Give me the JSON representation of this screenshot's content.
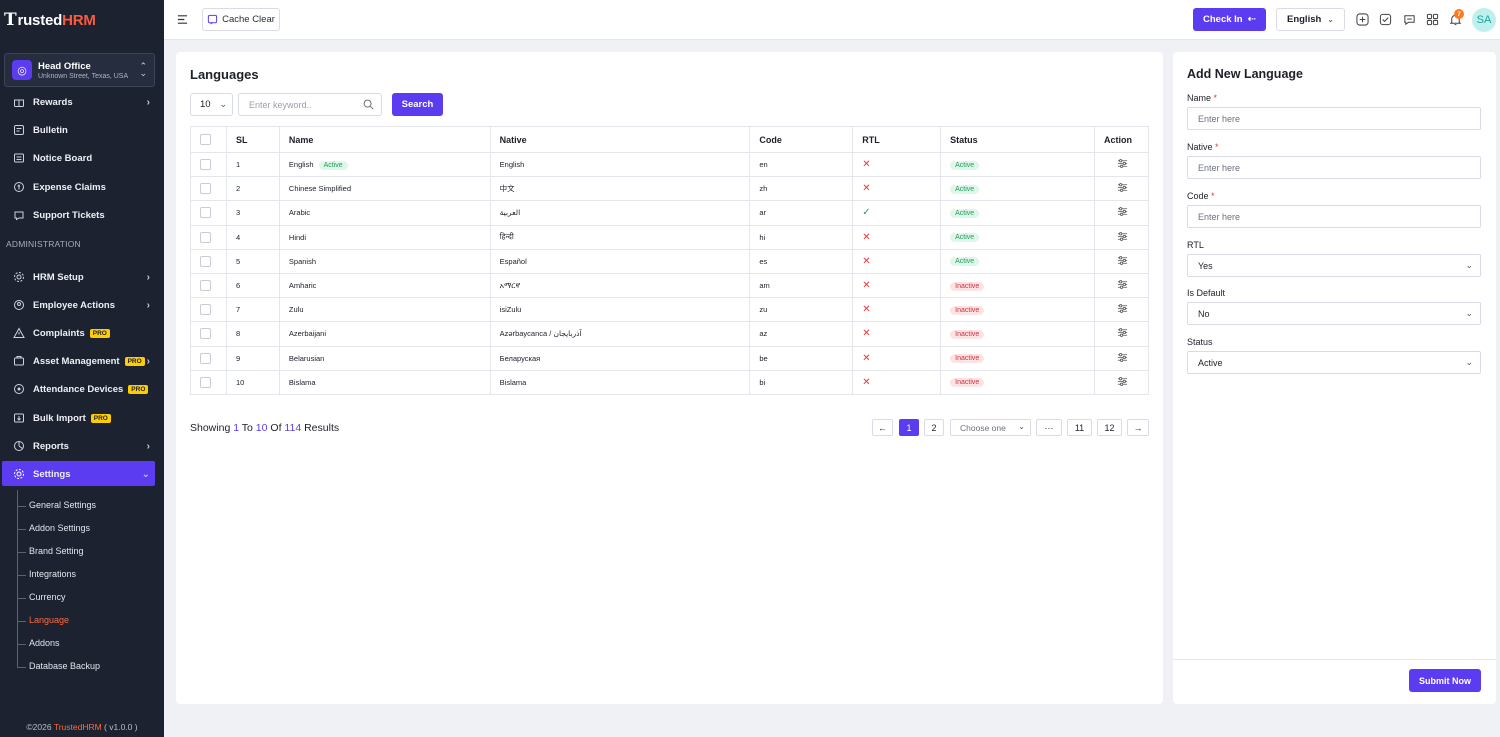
{
  "sidebar": {
    "logo_prefix": "T",
    "logo_main": "rusted",
    "logo_accent": "HRM",
    "branch": {
      "name": "Head Office",
      "address": "Unknown Street, Texas, USA"
    },
    "items_top": [
      {
        "label": "Rewards",
        "icon": "gift-icon",
        "arrow": "›"
      },
      {
        "label": "Bulletin",
        "icon": "bulletin-icon"
      },
      {
        "label": "Notice Board",
        "icon": "notice-icon"
      },
      {
        "label": "Expense Claims",
        "icon": "money-icon"
      },
      {
        "label": "Support Tickets",
        "icon": "ticket-icon"
      }
    ],
    "section": "ADMINISTRATION",
    "items_admin": [
      {
        "label": "HRM Setup",
        "icon": "gear-icon",
        "arrow": "›"
      },
      {
        "label": "Employee Actions",
        "icon": "user-icon",
        "arrow": "›"
      },
      {
        "label": "Complaints",
        "icon": "warning-icon",
        "pro": "PRO"
      },
      {
        "label": "Asset Management",
        "icon": "asset-icon",
        "pro": "PRO",
        "arrow": "›"
      },
      {
        "label": "Attendance Devices",
        "icon": "device-icon",
        "pro": "PRO"
      },
      {
        "label": "Bulk Import",
        "icon": "import-icon",
        "pro": "PRO"
      },
      {
        "label": "Reports",
        "icon": "report-icon",
        "arrow": "›"
      },
      {
        "label": "Settings",
        "icon": "settings-icon",
        "arrow": "⌄"
      }
    ],
    "settings_sub": [
      "General Settings",
      "Addon Settings",
      "Brand Setting",
      "Integrations",
      "Currency",
      "Language",
      "Addons",
      "Database Backup"
    ],
    "active_sub": "Language",
    "footer_prefix": "©2026 ",
    "footer_brand": "TrustedHRM",
    "footer_suffix": " ( v1.0.0 )"
  },
  "header": {
    "cache_label": "Cache Clear",
    "checkin_label": "Check In",
    "language": "English",
    "notification_count": "7",
    "avatar_initials": "SA"
  },
  "main": {
    "title": "Languages",
    "per_page": "10",
    "search_placeholder": "Enter keyword..",
    "search_label": "Search",
    "columns": [
      "SL",
      "Name",
      "Native",
      "Code",
      "RTL",
      "Status",
      "Action"
    ],
    "rows": [
      {
        "sl": "1",
        "name": "English",
        "default_badge": "Active",
        "native": "English",
        "code": "en",
        "rtl": false,
        "status": "Active"
      },
      {
        "sl": "2",
        "name": "Chinese Simplified",
        "native": "中文",
        "code": "zh",
        "rtl": false,
        "status": "Active"
      },
      {
        "sl": "3",
        "name": "Arabic",
        "native": "العربية",
        "code": "ar",
        "rtl": true,
        "status": "Active"
      },
      {
        "sl": "4",
        "name": "Hindi",
        "native": "हिन्दी",
        "code": "hi",
        "rtl": false,
        "status": "Active"
      },
      {
        "sl": "5",
        "name": "Spanish",
        "native": "Español",
        "code": "es",
        "rtl": false,
        "status": "Active"
      },
      {
        "sl": "6",
        "name": "Amharic",
        "native": "አማርኛ",
        "code": "am",
        "rtl": false,
        "status": "Inactive"
      },
      {
        "sl": "7",
        "name": "Zulu",
        "native": "isiZulu",
        "code": "zu",
        "rtl": false,
        "status": "Inactive"
      },
      {
        "sl": "8",
        "name": "Azerbaijani",
        "native": "Azərbaycanca / آذربایجان",
        "code": "az",
        "rtl": false,
        "status": "Inactive"
      },
      {
        "sl": "9",
        "name": "Belarusian",
        "native": "Беларуская",
        "code": "be",
        "rtl": false,
        "status": "Inactive"
      },
      {
        "sl": "10",
        "name": "Bislama",
        "native": "Bislama",
        "code": "bi",
        "rtl": false,
        "status": "Inactive"
      }
    ],
    "showing": {
      "prefix": "Showing",
      "from": "1",
      "to_word": "To",
      "to": "10",
      "of_word": "Of",
      "total": "114",
      "suffix": "Results"
    },
    "pagination": {
      "prev": "←",
      "pages_before": [
        "1",
        "2"
      ],
      "current": "1",
      "select_placeholder": "Choose one",
      "ellipsis": "···",
      "pages_after": [
        "11",
        "12"
      ],
      "next": "→"
    }
  },
  "form": {
    "title": "Add New Language",
    "name_label": "Name",
    "native_label": "Native",
    "code_label": "Code",
    "required_mark": "*",
    "placeholder": "Enter here",
    "rtl_label": "RTL",
    "rtl_value": "Yes",
    "default_label": "Is Default",
    "default_value": "No",
    "status_label": "Status",
    "status_value": "Active",
    "submit_label": "Submit Now"
  },
  "colors": {
    "accent": "#5b3cf0",
    "sidebar_bg": "#1c2230",
    "brand_orange": "#ff6a3d",
    "active_green": "#1d9e57",
    "inactive_red": "#d6303a"
  }
}
